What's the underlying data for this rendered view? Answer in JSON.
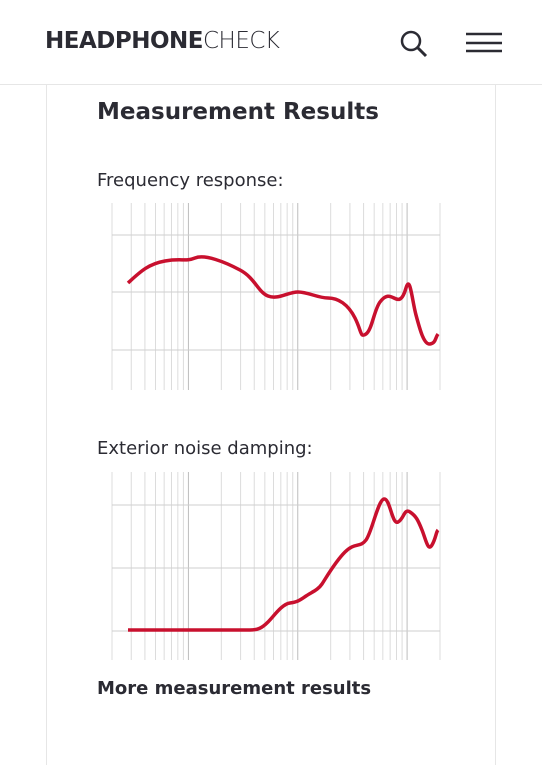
{
  "header": {
    "logo_bold": "HEADPHONE",
    "logo_light": "CHECK"
  },
  "section": {
    "title": "Measurement Results",
    "charts": [
      {
        "label": "Frequency response:"
      },
      {
        "label": "Exterior noise damping:"
      }
    ],
    "link": "More measurement results"
  }
}
